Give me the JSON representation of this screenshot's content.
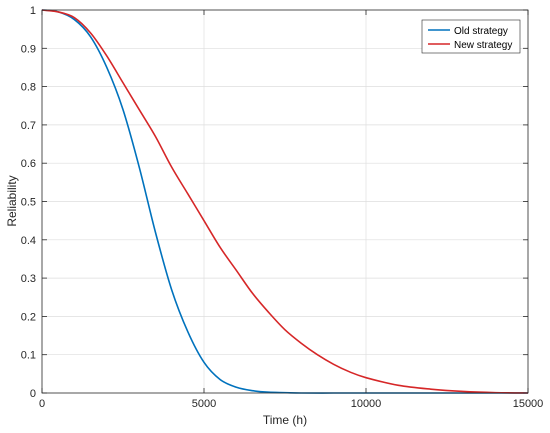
{
  "chart_data": {
    "type": "line",
    "xlabel": "Time (h)",
    "ylabel": "Reliability",
    "xlim": [
      0,
      15000
    ],
    "ylim": [
      0,
      1
    ],
    "xticks": [
      0,
      5000,
      10000,
      15000
    ],
    "yticks": [
      0,
      0.1,
      0.2,
      0.3,
      0.4,
      0.5,
      0.6,
      0.7,
      0.8,
      0.9,
      1
    ],
    "grid": true,
    "legend": "top-right",
    "series": [
      {
        "name": "Old strategy",
        "color": "#0072BD",
        "x": [
          0,
          500,
          1000,
          1500,
          2000,
          2500,
          3000,
          3500,
          4000,
          4500,
          5000,
          5500,
          6000,
          6500,
          7000,
          7500,
          8000,
          9000,
          10000,
          12000,
          15000
        ],
        "y": [
          1.0,
          0.995,
          0.975,
          0.93,
          0.85,
          0.74,
          0.59,
          0.42,
          0.27,
          0.16,
          0.08,
          0.035,
          0.015,
          0.006,
          0.002,
          0.001,
          0.0,
          0.0,
          0.0,
          0.0,
          0.0
        ]
      },
      {
        "name": "New strategy",
        "color": "#D62728",
        "x": [
          0,
          500,
          1000,
          1500,
          2000,
          2500,
          3000,
          3500,
          4000,
          4500,
          5000,
          5500,
          6000,
          6500,
          7000,
          7500,
          8000,
          8500,
          9000,
          9500,
          10000,
          11000,
          12000,
          13000,
          14000,
          15000
        ],
        "y": [
          1.0,
          0.995,
          0.98,
          0.94,
          0.88,
          0.81,
          0.74,
          0.67,
          0.59,
          0.52,
          0.45,
          0.38,
          0.32,
          0.26,
          0.21,
          0.165,
          0.13,
          0.1,
          0.075,
          0.055,
          0.04,
          0.02,
          0.01,
          0.004,
          0.001,
          0.0
        ]
      }
    ]
  }
}
